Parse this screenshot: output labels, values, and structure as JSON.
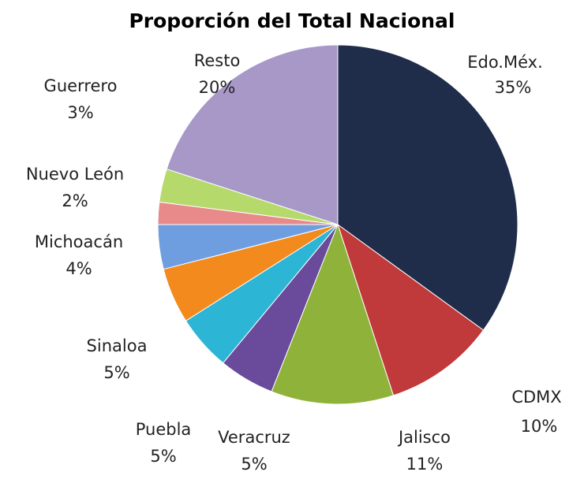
{
  "chart_data": {
    "type": "pie",
    "title": "Proporción del Total Nacional",
    "categories": [
      "Edo.Méx.",
      "CDMX",
      "Jalisco",
      "Veracruz",
      "Puebla",
      "Sinaloa",
      "Michoacán",
      "Nuevo León",
      "Guerrero",
      "Resto"
    ],
    "values": [
      35,
      10,
      11,
      5,
      5,
      5,
      4,
      2,
      3,
      20
    ],
    "value_labels": [
      "35%",
      "10%",
      "11%",
      "5%",
      "5%",
      "5%",
      "4%",
      "2%",
      "3%",
      "20%"
    ],
    "colors": [
      "#1f2d4a",
      "#c0393b",
      "#8fb33a",
      "#6a4a9a",
      "#2cb5d4",
      "#f28a1e",
      "#6f9ee0",
      "#e88a8a",
      "#b5d96b",
      "#a898c8"
    ]
  }
}
